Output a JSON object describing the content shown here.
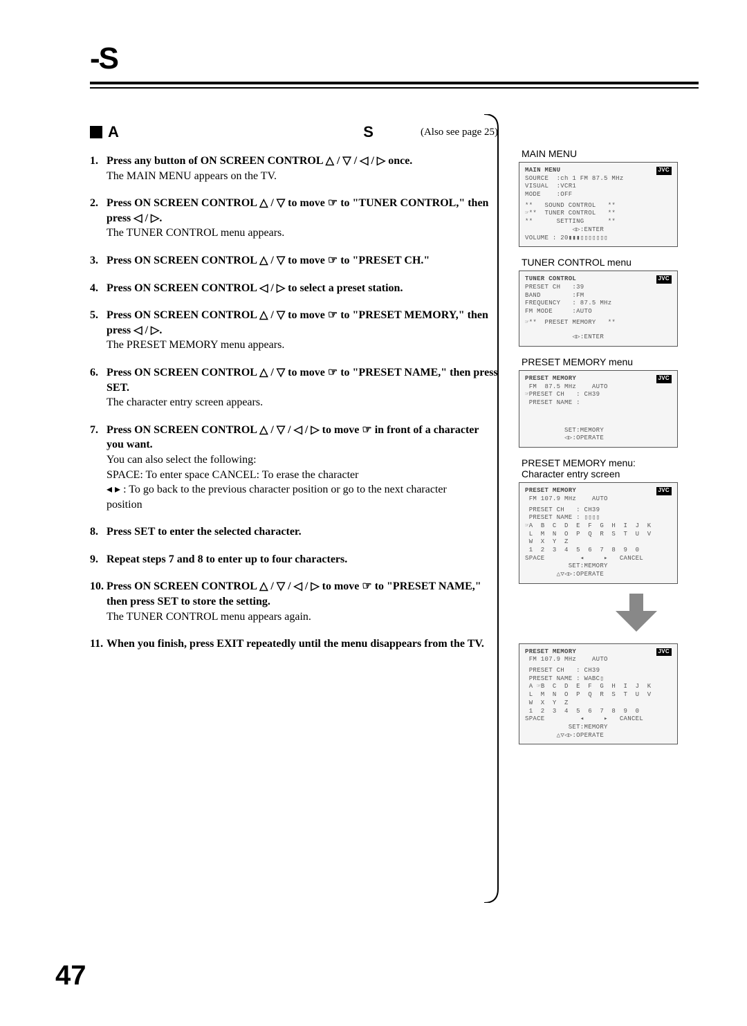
{
  "header_s": "-S",
  "section": {
    "a": "A",
    "s": "S",
    "also": "(Also see page 25)"
  },
  "steps": [
    {
      "n": "1.",
      "bold": "Press any button of ON SCREEN CONTROL △ / ▽ / ◁ / ▷ once.",
      "sub": "The MAIN MENU appears on the TV."
    },
    {
      "n": "2.",
      "bold": "Press ON SCREEN CONTROL △ / ▽ to move ☞ to \"TUNER CONTROL,\" then press ◁ / ▷.",
      "sub": "The TUNER CONTROL menu appears."
    },
    {
      "n": "3.",
      "bold": "Press ON SCREEN CONTROL △ / ▽ to move ☞ to \"PRESET CH.\"",
      "sub": ""
    },
    {
      "n": "4.",
      "bold": "Press ON SCREEN CONTROL ◁ / ▷ to select a preset station.",
      "sub": ""
    },
    {
      "n": "5.",
      "bold": "Press ON SCREEN CONTROL △ / ▽ to move ☞ to \"PRESET MEMORY,\" then press ◁ / ▷.",
      "sub": "The PRESET MEMORY menu appears."
    },
    {
      "n": "6.",
      "bold": "Press ON SCREEN CONTROL △ / ▽ to move ☞ to \"PRESET NAME,\" then press SET.",
      "sub": "The character entry screen appears."
    },
    {
      "n": "7.",
      "bold": "Press ON SCREEN CONTROL △ / ▽ / ◁ / ▷ to move ☞ in front of a character you want.",
      "sub": "You can also select the following:\nSPACE: To enter space          CANCEL: To erase the character\n◂ ▸ : To go back to the previous character position or go to the next character\n          position"
    },
    {
      "n": "8.",
      "bold": "Press SET to enter the selected character.",
      "sub": ""
    },
    {
      "n": "9.",
      "bold": "Repeat steps 7 and 8 to enter up to four characters.",
      "sub": ""
    },
    {
      "n": "10.",
      "bold": "Press ON SCREEN CONTROL △ / ▽ / ◁ / ▷ to move ☞ to \"PRESET NAME,\" then press SET to store the setting.",
      "sub": "The TUNER CONTROL menu appears again."
    },
    {
      "n": "11.",
      "bold": "When you finish, press EXIT repeatedly until the menu disappears from the TV.",
      "sub": ""
    }
  ],
  "menus": {
    "main_label": "MAIN MENU",
    "main": {
      "title": "MAIN MENU",
      "r1": "SOURCE  :ch 1 FM 87.5 MHz",
      "r2": "VISUAL  :VCR1",
      "r3": "MODE    :OFF",
      "r4": "**   SOUND CONTROL   **",
      "r5": "☞**  TUNER CONTROL   **",
      "r6": "**      SETTING      **",
      "r7": "            ◁▷:ENTER",
      "r8": "VOLUME : 20▮▮▮▯▯▯▯▯▯▯"
    },
    "tuner_label": "TUNER CONTROL menu",
    "tuner": {
      "title": "TUNER CONTROL",
      "r1": "PRESET CH   :39",
      "r2": "BAND        :FM",
      "r3": "FREQUENCY   : 87.5 MHz",
      "r4": "FM MODE     :AUTO",
      "r5": "☞**  PRESET MEMORY   **",
      "r6": "            ◁▷:ENTER"
    },
    "pm_label": "PRESET MEMORY menu",
    "pm": {
      "title": "PRESET MEMORY",
      "r0": " FM  87.5 MHz    AUTO",
      "r1": "☞PRESET CH   : CH39",
      "r2": " PRESET NAME :",
      "r3": "          SET:MEMORY",
      "r4": "          ◁▷:OPERATE"
    },
    "pm2_label": "PRESET MEMORY menu:\nCharacter entry screen",
    "pm2": {
      "title": "PRESET MEMORY",
      "r0": " FM 107.9 MHz    AUTO",
      "r1": " PRESET CH   : CH39",
      "r2": " PRESET NAME : ▯▯▯▯",
      "grid": "☞A  B  C  D  E  F  G  H  I  J  K\n L  M  N  O  P  Q  R  S  T  U  V\n W  X  Y  Z\n 1  2  3  4  5  6  7  8  9  0\nSPACE         ◂     ▸   CANCEL",
      "r3": "           SET:MEMORY",
      "r4": "        △▽◁▷:OPERATE"
    },
    "pm3": {
      "title": "PRESET MEMORY",
      "r0": " FM 107.9 MHz    AUTO",
      "r1": " PRESET CH   : CH39",
      "r2": " PRESET NAME : WABC▯",
      "grid": " A ☞B  C  D  E  F  G  H  I  J  K\n L  M  N  O  P  Q  R  S  T  U  V\n W  X  Y  Z\n 1  2  3  4  5  6  7  8  9  0\nSPACE         ◂     ▸   CANCEL",
      "r3": "           SET:MEMORY",
      "r4": "        △▽◁▷:OPERATE"
    }
  },
  "page_number": "47"
}
